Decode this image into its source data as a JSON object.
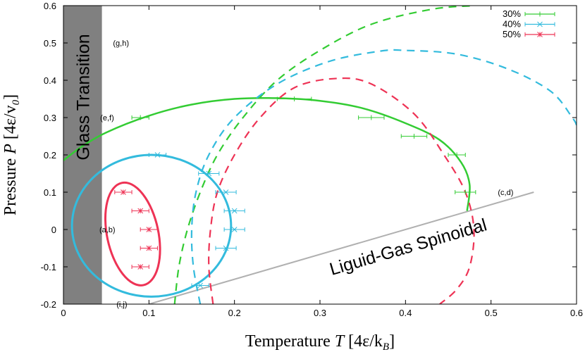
{
  "chart_data": {
    "type": "scatter",
    "xlabel_prefix": "Temperature ",
    "xlabel_var": "T",
    "xlabel_unit": " [4ε/k",
    "xlabel_sub": "B",
    "xlabel_close": "]",
    "ylabel_prefix": "Pressure ",
    "ylabel_var": "P",
    "ylabel_unit": " [4ε/v",
    "ylabel_sub": "0",
    "ylabel_close": "]",
    "xlim": [
      0,
      0.6
    ],
    "ylim": [
      -0.2,
      0.6
    ],
    "x_ticks": [
      0,
      0.1,
      0.2,
      0.3,
      0.4,
      0.5,
      0.6
    ],
    "x_tick_labels": [
      "0",
      "0.1",
      "0.2",
      "0.3",
      "0.4",
      "0.5",
      "0.6"
    ],
    "y_ticks": [
      -0.2,
      -0.1,
      0,
      0.1,
      0.2,
      0.3,
      0.4,
      0.5,
      0.6
    ],
    "y_tick_labels": [
      "-0.2",
      "-0.1",
      "0",
      "0.1",
      "0.2",
      "0.3",
      "0.4",
      "0.5",
      "0.6"
    ],
    "grid": false,
    "legend_position": "top-right",
    "glass_region": {
      "label": "Glass Transition",
      "x_range": [
        0,
        0.045
      ],
      "color": "#808080"
    },
    "spinoidal": {
      "label": "Liguid-Gas Spinoidal",
      "x": [
        0.1,
        0.55
      ],
      "y": [
        -0.2,
        0.1
      ],
      "color": "#b0b0b0"
    },
    "annotations": [
      {
        "text": "(g,h)",
        "x": 0.058,
        "y": 0.5
      },
      {
        "text": "(e,f)",
        "x": 0.043,
        "y": 0.3
      },
      {
        "text": "(a,b)",
        "x": 0.042,
        "y": 0.0
      },
      {
        "text": "(c,d)",
        "x": 0.508,
        "y": 0.1
      },
      {
        "text": "(i,j)",
        "x": 0.062,
        "y": -0.2
      }
    ],
    "series": [
      {
        "name": "30%",
        "color": "#33cc33",
        "marker": "+",
        "points": [
          {
            "x": 0.09,
            "y": 0.3,
            "xerr": 0.01
          },
          {
            "x": 0.27,
            "y": 0.35,
            "xerr": 0.02
          },
          {
            "x": 0.36,
            "y": 0.3,
            "xerr": 0.015
          },
          {
            "x": 0.41,
            "y": 0.25,
            "xerr": 0.015
          },
          {
            "x": 0.46,
            "y": 0.2,
            "xerr": 0.01
          },
          {
            "x": 0.47,
            "y": 0.1,
            "xerr": 0.012
          }
        ],
        "curve_solid": [
          [
            0.0,
            0.185
          ],
          [
            0.02,
            0.22
          ],
          [
            0.05,
            0.26
          ],
          [
            0.1,
            0.305
          ],
          [
            0.15,
            0.335
          ],
          [
            0.2,
            0.35
          ],
          [
            0.25,
            0.352
          ],
          [
            0.3,
            0.345
          ],
          [
            0.35,
            0.325
          ],
          [
            0.4,
            0.285
          ],
          [
            0.44,
            0.24
          ],
          [
            0.465,
            0.18
          ],
          [
            0.475,
            0.12
          ],
          [
            0.472,
            0.05
          ]
        ],
        "curve_dashed": [
          [
            0.13,
            -0.2
          ],
          [
            0.135,
            -0.1
          ],
          [
            0.145,
            0.0
          ],
          [
            0.16,
            0.1
          ],
          [
            0.18,
            0.2
          ],
          [
            0.21,
            0.3
          ],
          [
            0.25,
            0.4
          ],
          [
            0.3,
            0.48
          ],
          [
            0.36,
            0.55
          ],
          [
            0.43,
            0.59
          ],
          [
            0.48,
            0.6
          ]
        ]
      },
      {
        "name": "40%",
        "color": "#33bbdd",
        "marker": "x",
        "points": [
          {
            "x": 0.11,
            "y": 0.2,
            "xerr": 0.01
          },
          {
            "x": 0.17,
            "y": 0.15,
            "xerr": 0.012
          },
          {
            "x": 0.19,
            "y": 0.1,
            "xerr": 0.012
          },
          {
            "x": 0.2,
            "y": 0.05,
            "xerr": 0.012
          },
          {
            "x": 0.2,
            "y": 0.0,
            "xerr": 0.012
          },
          {
            "x": 0.19,
            "y": -0.05,
            "xerr": 0.012
          },
          {
            "x": 0.16,
            "y": -0.15,
            "xerr": 0.01
          }
        ],
        "curve_solid_ellipse": {
          "cx": 0.103,
          "cy": 0.01,
          "rx": 0.093,
          "ry": 0.19
        },
        "curve_dashed": [
          [
            0.16,
            -0.2
          ],
          [
            0.152,
            -0.1
          ],
          [
            0.15,
            0.0
          ],
          [
            0.155,
            0.1
          ],
          [
            0.17,
            0.2
          ],
          [
            0.2,
            0.3
          ],
          [
            0.25,
            0.39
          ],
          [
            0.31,
            0.45
          ],
          [
            0.37,
            0.478
          ],
          [
            0.4,
            0.48
          ],
          [
            0.46,
            0.47
          ],
          [
            0.52,
            0.43
          ],
          [
            0.57,
            0.37
          ],
          [
            0.595,
            0.3
          ],
          [
            0.6,
            0.28
          ]
        ]
      },
      {
        "name": "50%",
        "color": "#ee3355",
        "marker": "*",
        "points": [
          {
            "x": 0.07,
            "y": 0.1,
            "xerr": 0.01
          },
          {
            "x": 0.09,
            "y": 0.05,
            "xerr": 0.01
          },
          {
            "x": 0.1,
            "y": 0.0,
            "xerr": 0.01
          },
          {
            "x": 0.1,
            "y": -0.05,
            "xerr": 0.01
          },
          {
            "x": 0.09,
            "y": -0.1,
            "xerr": 0.01
          }
        ],
        "curve_solid_ellipse": {
          "cx": 0.081,
          "cy": -0.012,
          "rx": 0.03,
          "ry": 0.14,
          "tilt_deg": -12
        },
        "curve_dashed": [
          [
            0.175,
            -0.2
          ],
          [
            0.17,
            -0.1
          ],
          [
            0.172,
            0.0
          ],
          [
            0.18,
            0.1
          ],
          [
            0.2,
            0.2
          ],
          [
            0.23,
            0.3
          ],
          [
            0.27,
            0.38
          ],
          [
            0.32,
            0.405
          ],
          [
            0.36,
            0.39
          ],
          [
            0.41,
            0.31
          ],
          [
            0.445,
            0.2
          ],
          [
            0.47,
            0.1
          ],
          [
            0.48,
            0.0
          ],
          [
            0.475,
            -0.1
          ],
          [
            0.46,
            -0.16
          ],
          [
            0.44,
            -0.2
          ]
        ]
      }
    ]
  }
}
